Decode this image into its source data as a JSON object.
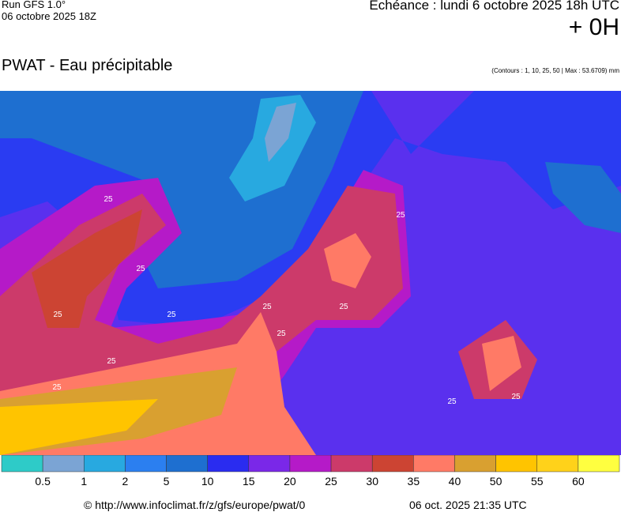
{
  "header": {
    "run": "Run GFS 1.0°",
    "run_date": "06 octobre 2025 18Z",
    "valid": "Echéance : lundi 6 octobre 2025 18h UTC",
    "lead": "+ 0H",
    "title": "PWAT - Eau précipitable",
    "contours": "(Contours : 1, 10, 25, 50 | Max : 53.6709) mm"
  },
  "map": {
    "contour_labels": [
      "25",
      "25",
      "25",
      "25",
      "25",
      "25",
      "25",
      "25",
      "25",
      "25",
      "25",
      "25"
    ]
  },
  "legend": {
    "colors": [
      "#2ecbc8",
      "#7ba4d4",
      "#28a9e0",
      "#2b7ff0",
      "#1e6fd0",
      "#2a2cf0",
      "#7a28e8",
      "#b51ac8",
      "#cc3a6a",
      "#cc4433",
      "#ff7a66",
      "#d9a030",
      "#ffc400",
      "#ffd21a",
      "#ffff40"
    ],
    "bounds": [
      0.5,
      1,
      2,
      5,
      10,
      15,
      20,
      25,
      30,
      35,
      40,
      50,
      55,
      60
    ]
  },
  "footer": {
    "url": "© http://www.infoclimat.fr/z/gfs/europe/pwat/0",
    "generated": "06 oct. 2025 21:35 UTC"
  }
}
